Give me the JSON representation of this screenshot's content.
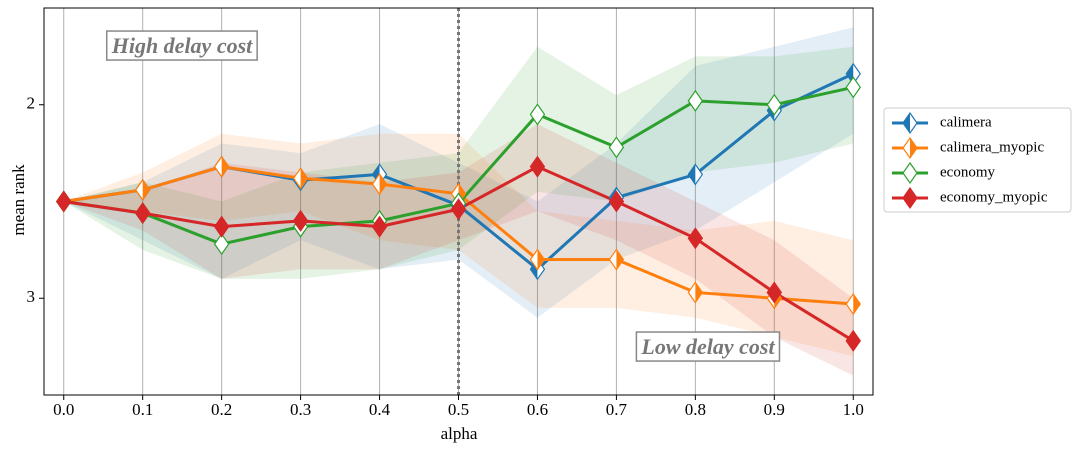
{
  "chart_data": {
    "type": "line",
    "xlabel": "alpha",
    "ylabel": "mean rank",
    "x": [
      0,
      0.1,
      0.2,
      0.3,
      0.4,
      0.5,
      0.6,
      0.7,
      0.8,
      0.9,
      1.0
    ],
    "xlim": [
      -0.025,
      1.025
    ],
    "xticks": [
      {
        "value": 0,
        "label": "0.0"
      },
      0.1,
      0.2,
      0.3,
      0.4,
      0.5,
      0.6,
      0.7,
      0.8,
      0.9,
      {
        "value": 1,
        "label": "1.0"
      }
    ],
    "ylim": [
      3.5,
      1.5
    ],
    "yticks": [
      2,
      3
    ],
    "grid": "x",
    "vline": 0.5,
    "legend": "outside right",
    "annotations": [
      {
        "text": "High delay cost",
        "corner": "top left"
      },
      {
        "text": "Low delay cost",
        "corner": "bottom right"
      }
    ],
    "series": [
      {
        "name": "calimera",
        "color": "#1f77b4",
        "marker_fill": "left",
        "values": [
          2.5,
          2.44,
          2.32,
          2.39,
          2.36,
          2.52,
          2.85,
          2.48,
          2.36,
          2.03,
          1.84
        ],
        "band_upper": [
          2.5,
          2.4,
          2.2,
          2.25,
          2.1,
          2.3,
          2.5,
          2.2,
          1.8,
          1.7,
          1.6
        ],
        "band_lower": [
          2.5,
          2.7,
          2.9,
          2.7,
          2.85,
          2.8,
          3.1,
          2.8,
          2.65,
          2.4,
          2.15
        ]
      },
      {
        "name": "calimera_myopic",
        "color": "#ff7f0e",
        "marker_fill": "right",
        "values": [
          2.5,
          2.44,
          2.32,
          2.38,
          2.41,
          2.46,
          2.8,
          2.8,
          2.97,
          3.0,
          3.03
        ],
        "band_upper": [
          2.5,
          2.35,
          2.15,
          2.2,
          2.15,
          2.15,
          2.55,
          2.6,
          2.65,
          2.6,
          2.7
        ],
        "band_lower": [
          2.5,
          2.55,
          2.6,
          2.55,
          2.7,
          2.75,
          3.05,
          3.05,
          3.1,
          3.2,
          3.3
        ]
      },
      {
        "name": "economy",
        "color": "#2ca02c",
        "marker_fill": "none",
        "values": [
          2.5,
          2.56,
          2.72,
          2.63,
          2.6,
          2.51,
          2.05,
          2.22,
          1.98,
          2.0,
          1.91
        ],
        "band_upper": [
          2.5,
          2.4,
          2.5,
          2.35,
          2.3,
          2.25,
          1.7,
          1.95,
          1.75,
          1.75,
          1.7
        ],
        "band_lower": [
          2.5,
          2.75,
          2.9,
          2.9,
          2.85,
          2.75,
          2.45,
          2.5,
          2.35,
          2.3,
          2.2
        ]
      },
      {
        "name": "economy_myopic",
        "color": "#d62728",
        "marker_fill": "full",
        "values": [
          2.5,
          2.56,
          2.63,
          2.6,
          2.63,
          2.54,
          2.32,
          2.5,
          2.69,
          2.97,
          3.22
        ],
        "band_upper": [
          2.5,
          2.45,
          2.3,
          2.35,
          2.4,
          2.35,
          2.1,
          2.3,
          2.5,
          2.7,
          3.0
        ],
        "band_lower": [
          2.5,
          2.65,
          2.9,
          2.85,
          2.85,
          2.7,
          2.55,
          2.7,
          2.9,
          3.2,
          3.4
        ]
      }
    ]
  }
}
